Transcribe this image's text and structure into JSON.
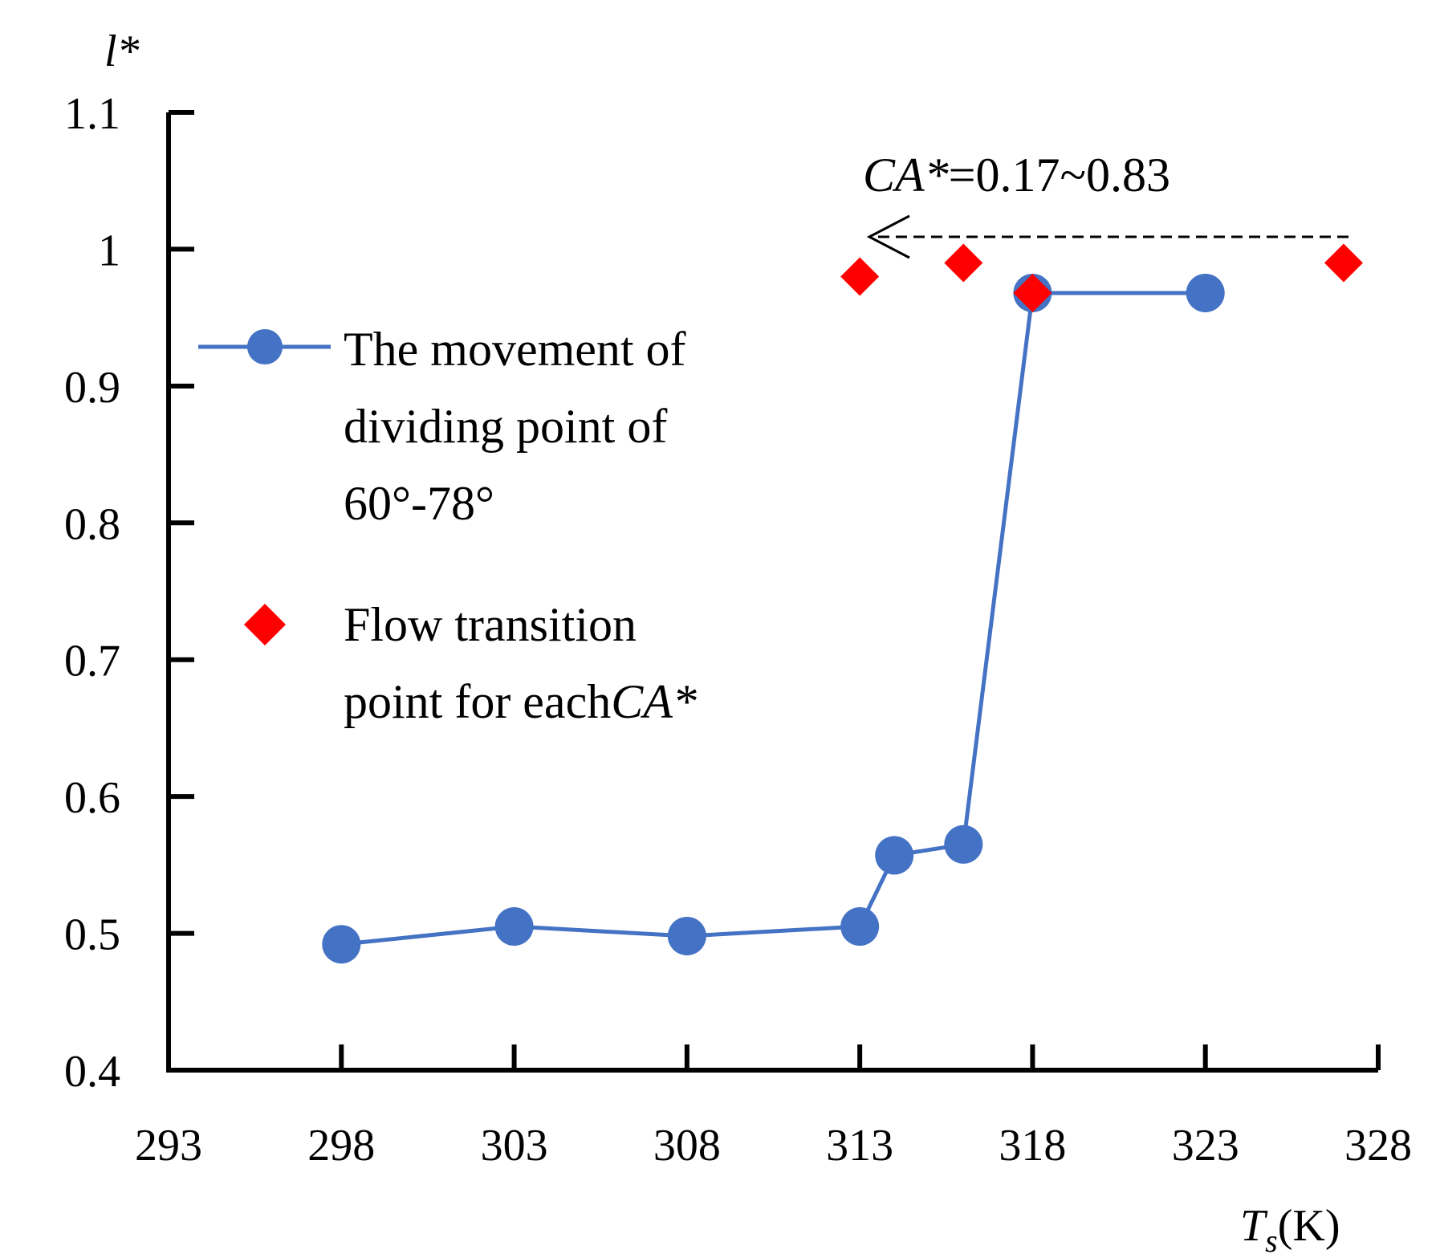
{
  "chart_data": {
    "type": "line",
    "xlabel": {
      "var": "T",
      "sub": "s",
      "unit": "(K)"
    },
    "ylabel": "l*",
    "xlim": [
      293,
      328
    ],
    "ylim": [
      0.4,
      1.1
    ],
    "xticks": [
      "293",
      "298",
      "303",
      "308",
      "313",
      "318",
      "323",
      "328"
    ],
    "yticks": [
      "0.4",
      "0.5",
      "0.6",
      "0.7",
      "0.8",
      "0.9",
      "1",
      "1.1"
    ],
    "grid": false,
    "series": [
      {
        "name": "The movement of dividing point of 60°-78°",
        "marker": "circle",
        "color": "#4472c4",
        "x": [
          298,
          303,
          308,
          313,
          314,
          316,
          318,
          323
        ],
        "y": [
          0.492,
          0.505,
          0.498,
          0.505,
          0.557,
          0.565,
          0.968,
          0.968
        ]
      },
      {
        "name": "Flow transition point for each CA*",
        "marker": "diamond",
        "color": "#ff0000",
        "line": false,
        "x": [
          313,
          316,
          318,
          327
        ],
        "y": [
          0.98,
          0.99,
          0.968,
          0.99
        ]
      }
    ],
    "legend": {
      "position": "upper-left",
      "series1_lines": [
        "The movement of",
        "dividing point of",
        "60°-78°"
      ],
      "series2_lines": [
        "Flow transition",
        "point for each"
      ],
      "series2_suffix": "CA*"
    },
    "annotation": {
      "label_var": "CA*",
      "label_rest": "=0.17~0.83",
      "arrow": {
        "from_x": 327,
        "to_x": 313,
        "y": 1.01,
        "style": "dashed"
      }
    }
  }
}
